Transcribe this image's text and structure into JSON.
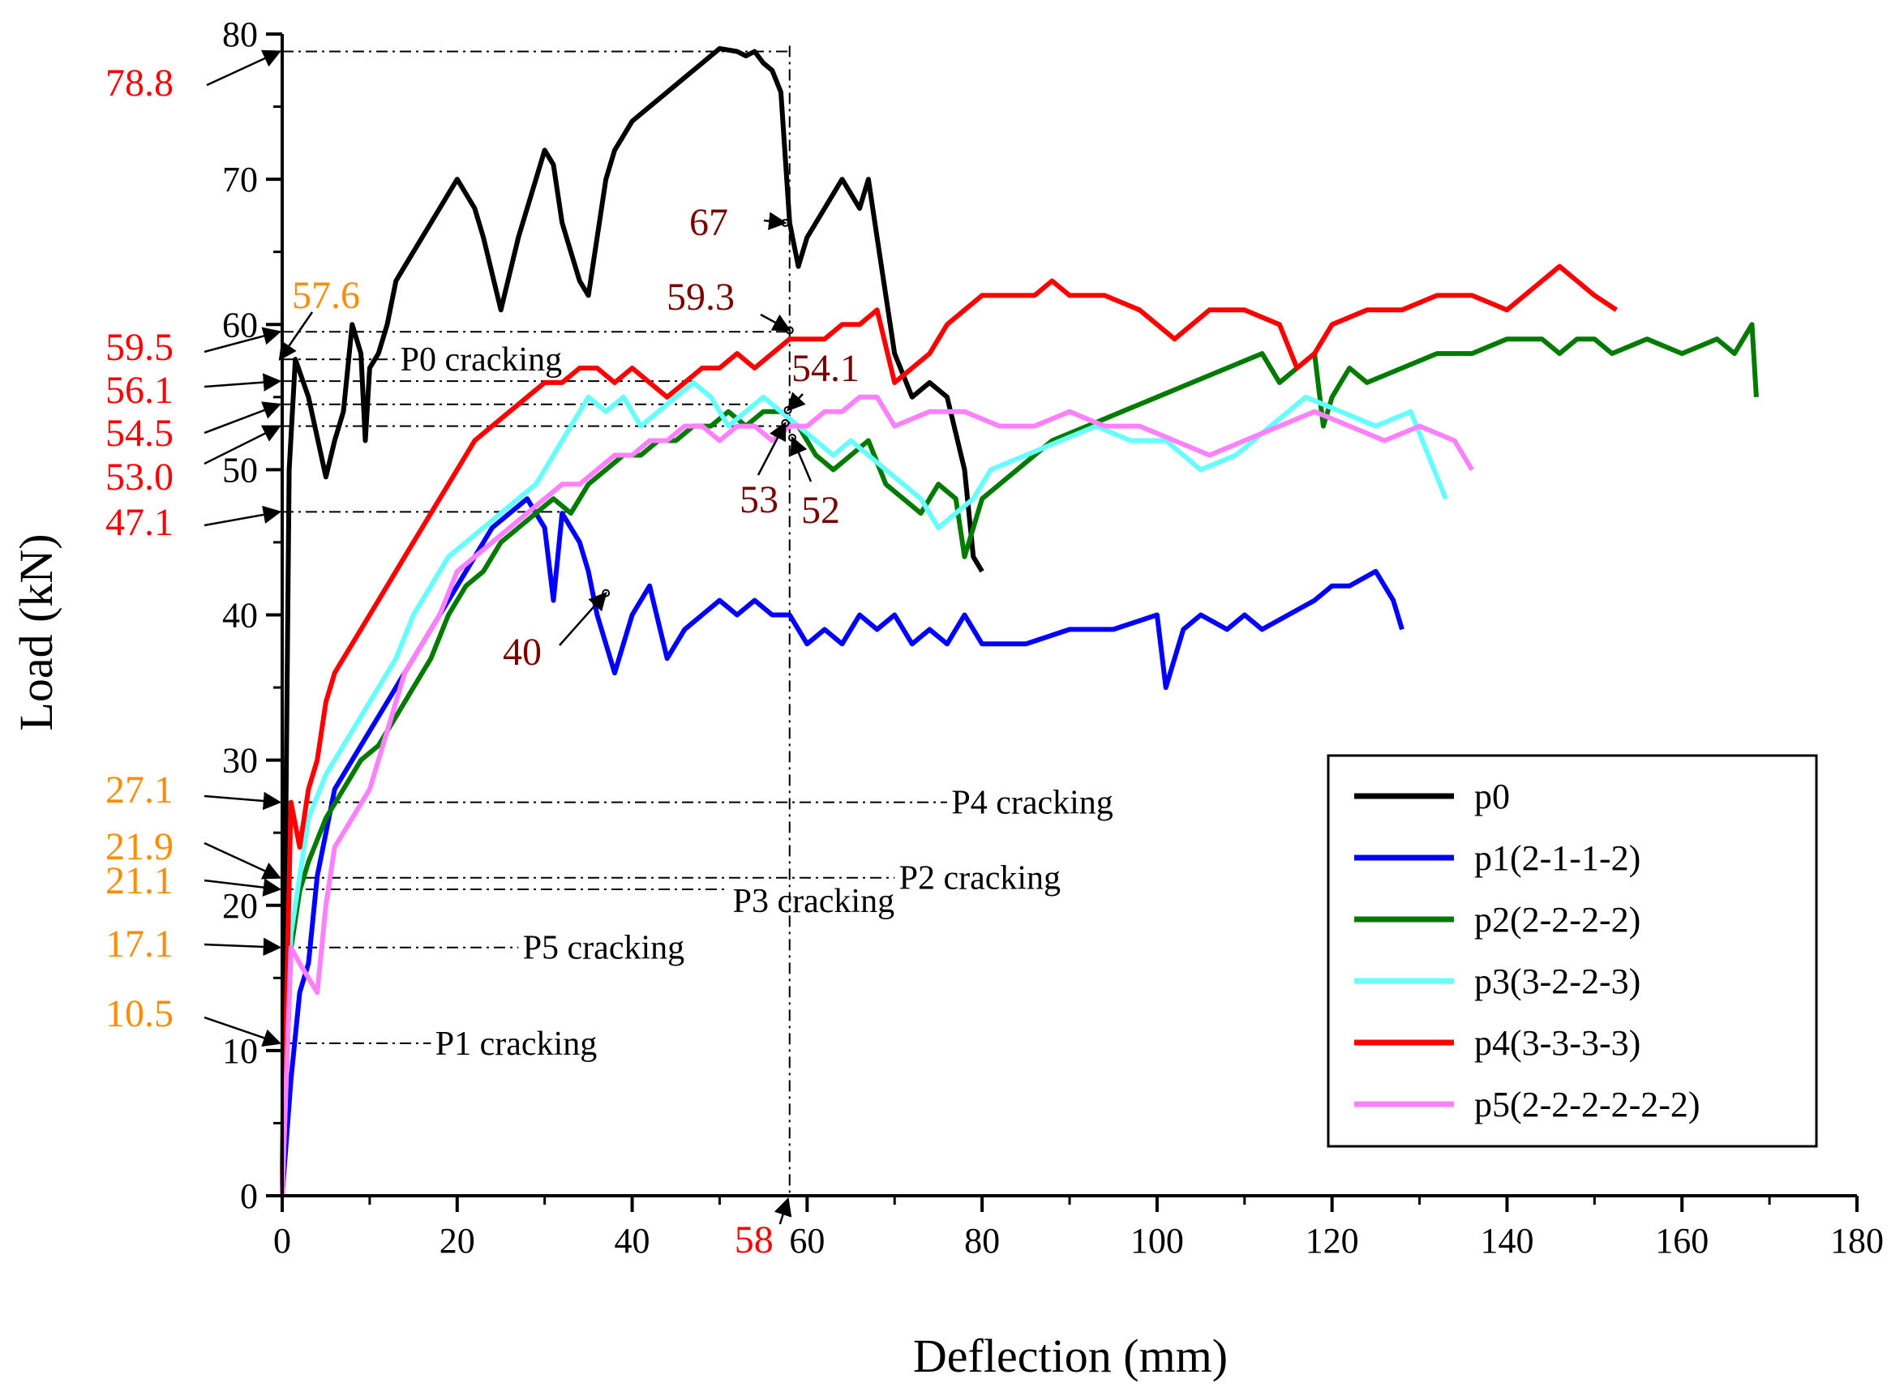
{
  "chart_data": {
    "type": "line",
    "title": "",
    "xlabel": "Deflection (mm)",
    "ylabel": "Load (kN)",
    "xlim": [
      0,
      180
    ],
    "ylim": [
      0,
      80
    ],
    "xticks": [
      0,
      20,
      40,
      60,
      80,
      100,
      120,
      140,
      160,
      180
    ],
    "yticks": [
      0,
      10,
      20,
      30,
      40,
      50,
      60,
      70,
      80
    ],
    "legend_position": "bottom-right",
    "series": [
      {
        "name": "p0",
        "color": "#000000",
        "x": [
          0,
          0.8,
          1.5,
          3,
          5,
          6,
          7,
          8,
          9,
          9.5,
          10,
          11,
          12,
          13,
          14,
          15,
          16,
          17,
          18,
          19,
          20,
          21,
          22,
          23,
          25,
          27,
          29,
          30,
          31,
          32,
          33,
          34,
          35,
          36,
          37,
          38,
          39,
          40,
          42,
          44,
          46,
          48,
          50,
          52,
          53,
          54,
          55,
          56,
          57,
          58,
          59,
          60,
          62,
          64,
          66,
          67,
          68,
          70,
          72,
          74,
          76,
          78,
          79,
          80
        ],
        "y": [
          0,
          50,
          57.6,
          55,
          49.5,
          52,
          54,
          60,
          58,
          52,
          57,
          58,
          60,
          63,
          64,
          65,
          66,
          67,
          68,
          69,
          70,
          69,
          68,
          66,
          61,
          66,
          70,
          72,
          71,
          67,
          65,
          63,
          62,
          66,
          70,
          72,
          73,
          74,
          75,
          76,
          77,
          78,
          79,
          78.8,
          78.5,
          78.8,
          78,
          77.5,
          76,
          67,
          64,
          66,
          68,
          70,
          68,
          70,
          66,
          58,
          55,
          56,
          55,
          50,
          44,
          43
        ]
      },
      {
        "name": "p1(2-1-1-2)",
        "color": "#0000ff",
        "x": [
          0,
          1,
          2,
          3,
          4,
          6,
          8,
          10,
          12,
          14,
          16,
          18,
          20,
          22,
          24,
          26,
          28,
          30,
          31,
          32,
          34,
          35,
          36,
          37,
          38,
          39,
          40,
          42,
          44,
          46,
          48,
          50,
          52,
          54,
          56,
          58,
          60,
          62,
          64,
          66,
          68,
          70,
          72,
          74,
          76,
          78,
          80,
          85,
          90,
          95,
          100,
          101,
          103,
          105,
          108,
          110,
          112,
          115,
          118,
          120,
          122,
          125,
          127,
          128
        ],
        "y": [
          0,
          8,
          14,
          16,
          22,
          28,
          30,
          32,
          34,
          36,
          38,
          40,
          42,
          44,
          46,
          47,
          48,
          46,
          41,
          47,
          45,
          43,
          40,
          38,
          36,
          38,
          40,
          42,
          37,
          39,
          40,
          41,
          40,
          41,
          40,
          40,
          38,
          39,
          38,
          40,
          39,
          40,
          38,
          39,
          38,
          40,
          38,
          38,
          39,
          39,
          40,
          35,
          39,
          40,
          39,
          40,
          39,
          40,
          41,
          42,
          42,
          43,
          41,
          39
        ]
      },
      {
        "name": "p2(2-2-2-2)",
        "color": "#007b00",
        "x": [
          0,
          1,
          2,
          3,
          5,
          7,
          9,
          11,
          13,
          15,
          17,
          19,
          21,
          23,
          25,
          27,
          29,
          31,
          33,
          35,
          37,
          39,
          41,
          43,
          45,
          47,
          49,
          51,
          53,
          55,
          57,
          59,
          61,
          63,
          65,
          67,
          69,
          71,
          73,
          75,
          77,
          78,
          80,
          84,
          88,
          92,
          96,
          100,
          104,
          108,
          112,
          114,
          116,
          118,
          119,
          120,
          122,
          124,
          128,
          132,
          136,
          140,
          144,
          146,
          148,
          150,
          152,
          156,
          160,
          164,
          166,
          168,
          168.5
        ],
        "y": [
          0,
          17,
          21,
          23,
          26,
          28,
          30,
          31,
          33,
          35,
          37,
          40,
          42,
          43,
          45,
          46,
          47,
          48,
          47,
          49,
          50,
          51,
          51,
          52,
          52,
          53,
          53,
          54,
          53,
          54,
          54,
          53,
          51,
          50,
          51,
          52,
          49,
          48,
          47,
          49,
          48,
          44,
          48,
          50,
          52,
          53,
          54,
          55,
          56,
          57,
          58,
          56,
          57,
          58,
          53,
          55,
          57,
          56,
          57,
          58,
          58,
          59,
          59,
          58,
          59,
          59,
          58,
          59,
          58,
          59,
          58,
          60,
          55
        ]
      },
      {
        "name": "p3(3-2-2-3)",
        "color": "#66ffff",
        "x": [
          0,
          1,
          2,
          3,
          5,
          7,
          9,
          11,
          13,
          15,
          17,
          19,
          21,
          23,
          25,
          27,
          29,
          31,
          33,
          35,
          37,
          39,
          41,
          43,
          45,
          47,
          49,
          51,
          53,
          55,
          57,
          59,
          61,
          63,
          65,
          67,
          69,
          71,
          73,
          75,
          77,
          79,
          81,
          85,
          89,
          93,
          97,
          101,
          105,
          109,
          113,
          117,
          121,
          125,
          129,
          133
        ],
        "y": [
          0,
          18,
          22,
          26,
          29,
          31,
          33,
          35,
          37,
          40,
          42,
          44,
          45,
          46,
          47,
          48,
          49,
          51,
          53,
          55,
          54,
          55,
          53,
          54,
          55,
          56,
          55,
          53,
          54,
          55,
          54,
          53,
          52,
          51,
          52,
          51,
          50,
          49,
          48,
          46,
          47,
          48,
          50,
          51,
          52,
          53,
          52,
          52,
          50,
          51,
          53,
          55,
          54,
          53,
          54,
          48
        ]
      },
      {
        "name": "p4(3-3-3-3)",
        "color": "#ff0000",
        "x": [
          0,
          1,
          2,
          3,
          4,
          5,
          6,
          8,
          10,
          12,
          14,
          16,
          18,
          20,
          22,
          24,
          26,
          28,
          30,
          32,
          34,
          36,
          38,
          40,
          42,
          44,
          46,
          48,
          50,
          52,
          54,
          56,
          58,
          60,
          62,
          64,
          66,
          68,
          70,
          72,
          74,
          76,
          78,
          80,
          82,
          84,
          86,
          88,
          90,
          94,
          98,
          102,
          106,
          110,
          114,
          116,
          118,
          120,
          124,
          128,
          132,
          136,
          140,
          144,
          146,
          148,
          150,
          152.5
        ],
        "y": [
          0,
          27.1,
          24,
          28,
          30,
          34,
          36,
          38,
          40,
          42,
          44,
          46,
          48,
          50,
          52,
          53,
          54,
          55,
          56,
          56,
          57,
          57,
          56,
          57,
          56,
          55,
          56,
          57,
          57,
          58,
          57,
          58,
          59,
          59,
          59,
          60,
          60,
          61,
          56,
          57,
          58,
          60,
          61,
          62,
          62,
          62,
          62,
          63,
          62,
          62,
          61,
          59,
          61,
          61,
          60,
          57,
          58,
          60,
          61,
          61,
          62,
          62,
          61,
          63,
          64,
          63,
          62,
          61
        ]
      },
      {
        "name": "p5(2-2-2-2-2-2)",
        "color": "#ff80ff",
        "x": [
          0,
          1,
          2,
          3,
          4,
          5,
          6,
          8,
          10,
          12,
          14,
          16,
          18,
          20,
          22,
          24,
          26,
          28,
          30,
          32,
          34,
          36,
          38,
          40,
          42,
          44,
          46,
          48,
          50,
          52,
          54,
          56,
          58,
          60,
          62,
          64,
          66,
          68,
          70,
          74,
          78,
          82,
          86,
          90,
          94,
          98,
          102,
          106,
          110,
          114,
          118,
          122,
          126,
          130,
          134,
          136
        ],
        "y": [
          0,
          17.1,
          16,
          15,
          14,
          20,
          24,
          26,
          28,
          32,
          36,
          38,
          40,
          43,
          44,
          45,
          46,
          47,
          48,
          49,
          49,
          50,
          51,
          51,
          52,
          52,
          53,
          53,
          52,
          53,
          53,
          52,
          53,
          53,
          54,
          54,
          55,
          55,
          53,
          54,
          54,
          53,
          53,
          54,
          53,
          53,
          52,
          51,
          52,
          53,
          54,
          53,
          52,
          53,
          52,
          50
        ]
      }
    ],
    "annotations": {
      "y_marks": [
        {
          "text": "78.8",
          "color": "#ff0000",
          "value": 78.8
        },
        {
          "text": "57.6",
          "color": "#ff8c00",
          "value": 57.6
        },
        {
          "text": "59.5",
          "color": "#ff0000",
          "value": 59.5
        },
        {
          "text": "56.1",
          "color": "#ff0000",
          "value": 56.1
        },
        {
          "text": "54.5",
          "color": "#ff0000",
          "value": 54.5
        },
        {
          "text": "53.0",
          "color": "#ff0000",
          "value": 53.0
        },
        {
          "text": "47.1",
          "color": "#ff0000",
          "value": 47.1
        },
        {
          "text": "27.1",
          "color": "#ff8c00",
          "value": 27.1
        },
        {
          "text": "21.9",
          "color": "#ff8c00",
          "value": 21.9
        },
        {
          "text": "21.1",
          "color": "#ff8c00",
          "value": 21.1
        },
        {
          "text": "17.1",
          "color": "#ff8c00",
          "value": 17.1
        },
        {
          "text": "10.5",
          "color": "#ff8c00",
          "value": 10.5
        }
      ],
      "point_labels": [
        {
          "text": "67",
          "color": "#7b0000",
          "x": 58,
          "y": 67
        },
        {
          "text": "59.3",
          "color": "#7b0000",
          "x": 58,
          "y": 59.3
        },
        {
          "text": "54.1",
          "color": "#7b0000",
          "x": 58,
          "y": 54.1
        },
        {
          "text": "53",
          "color": "#7b0000",
          "x": 58,
          "y": 53
        },
        {
          "text": "52",
          "color": "#7b0000",
          "x": 58,
          "y": 52
        },
        {
          "text": "40",
          "color": "#7b0000",
          "x": 36,
          "y": 41.5
        }
      ],
      "cracking": [
        {
          "text": "P0 cracking",
          "load": 57.6
        },
        {
          "text": "P4 cracking",
          "load": 27.1
        },
        {
          "text": "P2 cracking",
          "load": 21.9
        },
        {
          "text": "P3 cracking",
          "load": 21.1
        },
        {
          "text": "P5 cracking",
          "load": 17.1
        },
        {
          "text": "P1 cracking",
          "load": 10.5
        }
      ],
      "x_mark": {
        "text": "58",
        "color": "#ff0000",
        "value": 58
      }
    }
  }
}
